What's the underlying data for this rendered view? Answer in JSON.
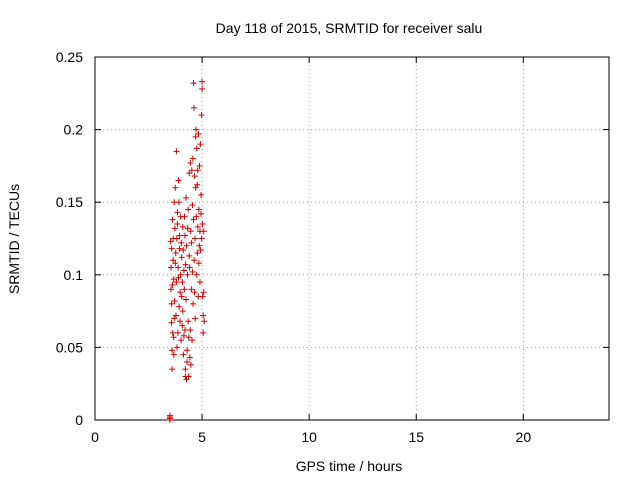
{
  "chart_data": {
    "type": "scatter",
    "title": "Day 118 of 2015, SRMTID for receiver salu",
    "xlabel": "GPS time / hours",
    "ylabel": "SRMTID / TECUs",
    "xlim": [
      0,
      24
    ],
    "ylim": [
      0,
      0.25
    ],
    "xticks": [
      0,
      5,
      10,
      15,
      20
    ],
    "yticks": [
      0,
      0.05,
      0.1,
      0.15,
      0.2,
      0.25
    ],
    "grid": true,
    "legend": "none",
    "marker": "+",
    "color": "#cc0000",
    "points": [
      [
        3.5,
        0.0
      ],
      [
        3.5,
        0.001
      ],
      [
        3.5,
        0.002
      ],
      [
        3.5,
        0.003
      ],
      [
        3.53,
        0.123
      ],
      [
        3.55,
        0.105
      ],
      [
        3.55,
        0.09
      ],
      [
        3.57,
        0.067
      ],
      [
        3.58,
        0.08
      ],
      [
        3.58,
        0.118
      ],
      [
        3.6,
        0.035
      ],
      [
        3.6,
        0.048
      ],
      [
        3.62,
        0.093
      ],
      [
        3.62,
        0.138
      ],
      [
        3.63,
        0.06
      ],
      [
        3.65,
        0.11
      ],
      [
        3.65,
        0.125
      ],
      [
        3.67,
        0.057
      ],
      [
        3.68,
        0.045
      ],
      [
        3.68,
        0.097
      ],
      [
        3.7,
        0.07
      ],
      [
        3.7,
        0.15
      ],
      [
        3.72,
        0.082
      ],
      [
        3.73,
        0.132
      ],
      [
        3.75,
        0.108
      ],
      [
        3.75,
        0.16
      ],
      [
        3.77,
        0.115
      ],
      [
        3.78,
        0.072
      ],
      [
        3.8,
        0.185
      ],
      [
        3.8,
        0.095
      ],
      [
        3.82,
        0.125
      ],
      [
        3.83,
        0.05
      ],
      [
        3.85,
        0.135
      ],
      [
        3.85,
        0.143
      ],
      [
        3.87,
        0.06
      ],
      [
        3.88,
        0.105
      ],
      [
        3.9,
        0.165
      ],
      [
        3.9,
        0.098
      ],
      [
        3.92,
        0.15
      ],
      [
        3.93,
        0.078
      ],
      [
        3.95,
        0.118
      ],
      [
        3.95,
        0.127
      ],
      [
        3.97,
        0.068
      ],
      [
        3.98,
        0.088
      ],
      [
        4.0,
        0.1
      ],
      [
        4.0,
        0.14
      ],
      [
        4.02,
        0.055
      ],
      [
        4.03,
        0.122
      ],
      [
        4.05,
        0.085
      ],
      [
        4.05,
        0.112
      ],
      [
        4.07,
        0.065
      ],
      [
        4.08,
        0.095
      ],
      [
        4.1,
        0.133
      ],
      [
        4.1,
        0.075
      ],
      [
        4.12,
        0.117
      ],
      [
        4.13,
        0.045
      ],
      [
        4.15,
        0.058
      ],
      [
        4.15,
        0.103
      ],
      [
        4.17,
        0.09
      ],
      [
        4.18,
        0.14
      ],
      [
        4.2,
        0.062
      ],
      [
        4.2,
        0.127
      ],
      [
        4.22,
        0.035
      ],
      [
        4.22,
        0.03
      ],
      [
        4.23,
        0.107
      ],
      [
        4.25,
        0.083
      ],
      [
        4.25,
        0.153
      ],
      [
        4.27,
        0.028
      ],
      [
        4.28,
        0.12
      ],
      [
        4.3,
        0.048
      ],
      [
        4.3,
        0.04
      ],
      [
        4.32,
        0.1
      ],
      [
        4.33,
        0.132
      ],
      [
        4.35,
        0.145
      ],
      [
        4.35,
        0.068
      ],
      [
        4.37,
        0.03
      ],
      [
        4.38,
        0.057
      ],
      [
        4.4,
        0.113
      ],
      [
        4.4,
        0.17
      ],
      [
        4.42,
        0.105
      ],
      [
        4.43,
        0.043
      ],
      [
        4.45,
        0.177
      ],
      [
        4.45,
        0.062
      ],
      [
        4.47,
        0.13
      ],
      [
        4.48,
        0.038
      ],
      [
        4.5,
        0.09
      ],
      [
        4.5,
        0.122
      ],
      [
        4.52,
        0.172
      ],
      [
        4.53,
        0.055
      ],
      [
        4.55,
        0.148
      ],
      [
        4.55,
        0.102
      ],
      [
        4.57,
        0.18
      ],
      [
        4.58,
        0.08
      ],
      [
        4.6,
        0.138
      ],
      [
        4.6,
        0.232
      ],
      [
        4.62,
        0.215
      ],
      [
        4.63,
        0.11
      ],
      [
        4.65,
        0.168
      ],
      [
        4.65,
        0.088
      ],
      [
        4.67,
        0.125
      ],
      [
        4.68,
        0.07
      ],
      [
        4.7,
        0.16
      ],
      [
        4.7,
        0.195
      ],
      [
        4.72,
        0.2
      ],
      [
        4.73,
        0.14
      ],
      [
        4.75,
        0.1
      ],
      [
        4.75,
        0.187
      ],
      [
        4.77,
        0.162
      ],
      [
        4.78,
        0.115
      ],
      [
        4.8,
        0.172
      ],
      [
        4.8,
        0.133
      ],
      [
        4.82,
        0.085
      ],
      [
        4.83,
        0.197
      ],
      [
        4.85,
        0.108
      ],
      [
        4.85,
        0.145
      ],
      [
        4.87,
        0.12
      ],
      [
        4.88,
        0.175
      ],
      [
        4.9,
        0.095
      ],
      [
        4.9,
        0.13
      ],
      [
        4.92,
        0.19
      ],
      [
        4.93,
        0.117
      ],
      [
        4.95,
        0.155
      ],
      [
        4.95,
        0.142
      ],
      [
        4.97,
        0.21
      ],
      [
        4.98,
        0.125
      ],
      [
        5.0,
        0.233
      ],
      [
        5.0,
        0.228
      ],
      [
        5.02,
        0.135
      ],
      [
        5.03,
        0.085
      ],
      [
        5.05,
        0.072
      ],
      [
        5.05,
        0.06
      ],
      [
        5.07,
        0.088
      ],
      [
        5.08,
        0.13
      ],
      [
        5.1,
        0.068
      ]
    ]
  }
}
